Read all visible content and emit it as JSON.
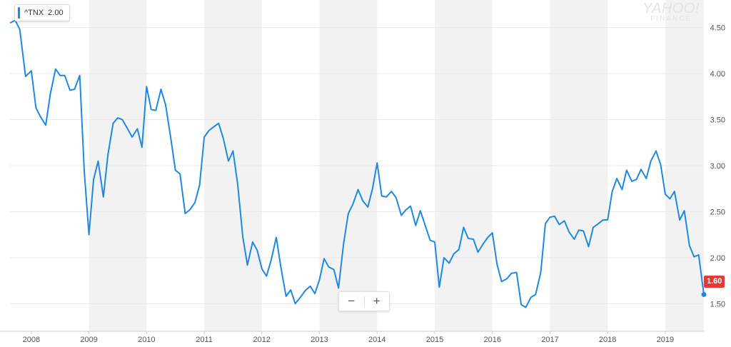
{
  "legend": {
    "symbol": "^TNX",
    "value": "2.00"
  },
  "watermark": {
    "main": "YAHOO!",
    "sub": "FINANCE"
  },
  "zoom": {
    "minus": "−",
    "plus": "+"
  },
  "current_badge": "1.60",
  "colors": {
    "line": "#1e88e5",
    "badge": "#e53935",
    "band": "#f2f2f2"
  },
  "chart_data": {
    "type": "line",
    "title": "",
    "xlabel": "",
    "ylabel": "",
    "x_ticks": [
      "2008",
      "2009",
      "2010",
      "2011",
      "2012",
      "2013",
      "2014",
      "2015",
      "2016",
      "2017",
      "2018",
      "2019"
    ],
    "y_ticks": [
      "1.50",
      "2.00",
      "2.50",
      "3.00",
      "3.50",
      "4.00",
      "4.50"
    ],
    "ylim": [
      1.2,
      4.8
    ],
    "xlim": [
      2007.63,
      2019.67
    ],
    "grid": true,
    "series": [
      {
        "name": "",
        "x": [
          2007.63,
          2007.72,
          2007.8,
          2007.9,
          2008.0,
          2008.08,
          2008.16,
          2008.25,
          2008.33,
          2008.42,
          2008.5,
          2008.58,
          2008.67,
          2008.75,
          2008.84,
          2008.92,
          2009.0,
          2009.08,
          2009.16,
          2009.25,
          2009.33,
          2009.42,
          2009.5,
          2009.58,
          2009.67,
          2009.75,
          2009.84,
          2009.92,
          2010.0,
          2010.08,
          2010.16,
          2010.25,
          2010.33,
          2010.42,
          2010.5,
          2010.58,
          2010.67,
          2010.75,
          2010.84,
          2010.92,
          2011.0,
          2011.08,
          2011.16,
          2011.25,
          2011.33,
          2011.42,
          2011.5,
          2011.58,
          2011.67,
          2011.75,
          2011.84,
          2011.92,
          2012.0,
          2012.08,
          2012.16,
          2012.25,
          2012.33,
          2012.42,
          2012.5,
          2012.58,
          2012.67,
          2012.75,
          2012.84,
          2012.92,
          2013.0,
          2013.08,
          2013.16,
          2013.25,
          2013.33,
          2013.42,
          2013.5,
          2013.58,
          2013.67,
          2013.75,
          2013.84,
          2013.92,
          2014.0,
          2014.08,
          2014.16,
          2014.25,
          2014.33,
          2014.42,
          2014.5,
          2014.58,
          2014.67,
          2014.75,
          2014.84,
          2014.92,
          2015.0,
          2015.08,
          2015.16,
          2015.25,
          2015.33,
          2015.42,
          2015.5,
          2015.58,
          2015.67,
          2015.75,
          2015.84,
          2015.92,
          2016.0,
          2016.08,
          2016.16,
          2016.25,
          2016.33,
          2016.42,
          2016.5,
          2016.58,
          2016.67,
          2016.75,
          2016.84,
          2016.92,
          2017.0,
          2017.08,
          2017.16,
          2017.25,
          2017.33,
          2017.42,
          2017.5,
          2017.58,
          2017.67,
          2017.75,
          2017.84,
          2017.92,
          2018.0,
          2018.08,
          2018.16,
          2018.25,
          2018.33,
          2018.42,
          2018.5,
          2018.58,
          2018.67,
          2018.75,
          2018.84,
          2018.92,
          2019.0,
          2019.08,
          2019.16,
          2019.25,
          2019.33,
          2019.42,
          2019.5,
          2019.58,
          2019.67
        ],
        "values": [
          4.55,
          4.58,
          4.48,
          3.97,
          4.03,
          3.63,
          3.53,
          3.44,
          3.78,
          4.05,
          3.98,
          3.98,
          3.82,
          3.83,
          3.98,
          2.93,
          2.25,
          2.85,
          3.05,
          2.66,
          3.12,
          3.46,
          3.52,
          3.5,
          3.4,
          3.31,
          3.4,
          3.2,
          3.86,
          3.61,
          3.6,
          3.83,
          3.66,
          3.3,
          2.95,
          2.91,
          2.48,
          2.52,
          2.6,
          2.79,
          3.31,
          3.38,
          3.42,
          3.46,
          3.3,
          3.05,
          3.16,
          2.8,
          2.22,
          1.92,
          2.17,
          2.08,
          1.88,
          1.8,
          1.97,
          2.22,
          1.9,
          1.58,
          1.65,
          1.5,
          1.57,
          1.64,
          1.69,
          1.61,
          1.76,
          1.99,
          1.9,
          1.87,
          1.67,
          2.16,
          2.48,
          2.58,
          2.74,
          2.62,
          2.55,
          2.75,
          3.03,
          2.67,
          2.66,
          2.72,
          2.65,
          2.46,
          2.52,
          2.56,
          2.35,
          2.51,
          2.34,
          2.19,
          2.17,
          1.68,
          2.0,
          1.94,
          2.04,
          2.09,
          2.33,
          2.21,
          2.2,
          2.06,
          2.15,
          2.22,
          2.27,
          1.93,
          1.74,
          1.77,
          1.83,
          1.84,
          1.49,
          1.46,
          1.57,
          1.6,
          1.84,
          2.37,
          2.44,
          2.45,
          2.36,
          2.4,
          2.28,
          2.2,
          2.3,
          2.29,
          2.12,
          2.33,
          2.37,
          2.41,
          2.41,
          2.72,
          2.86,
          2.74,
          2.95,
          2.83,
          2.85,
          2.96,
          2.86,
          3.05,
          3.16,
          3.01,
          2.69,
          2.64,
          2.72,
          2.41,
          2.51,
          2.13,
          2.01,
          2.03,
          1.6
        ]
      }
    ]
  }
}
